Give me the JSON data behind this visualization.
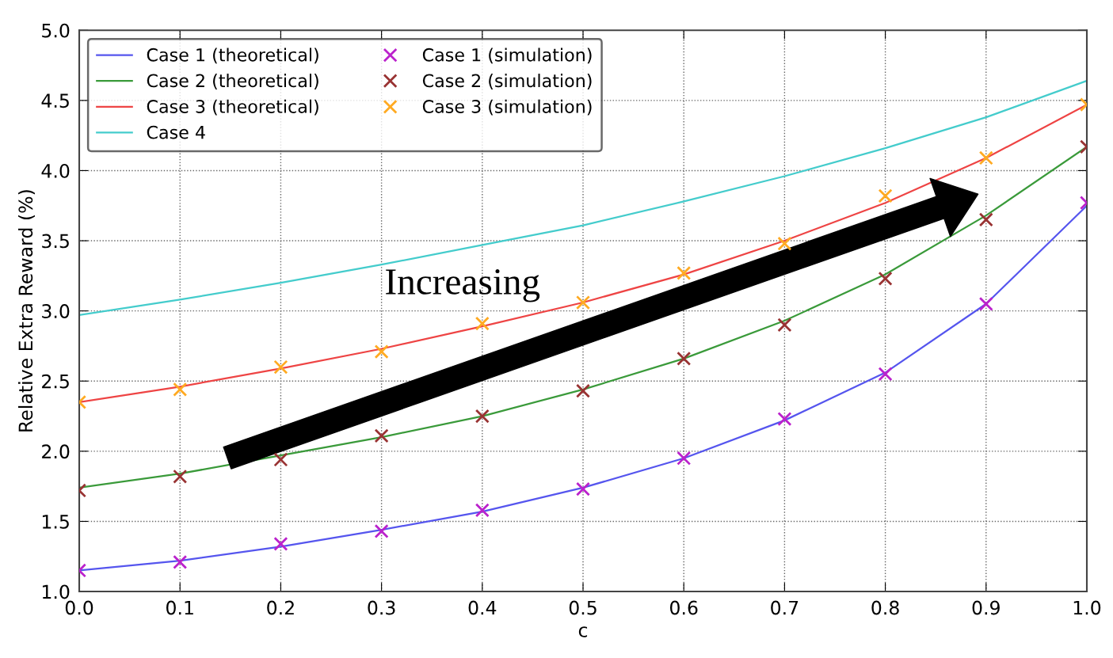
{
  "chart_data": {
    "type": "line",
    "xlabel": "c",
    "ylabel": "Relative Extra Reward (%)",
    "x": [
      0.0,
      0.1,
      0.2,
      0.3,
      0.4,
      0.5,
      0.6,
      0.7,
      0.8,
      0.9,
      1.0
    ],
    "xlim": [
      0.0,
      1.0
    ],
    "xticks": [
      {
        "value": 0.0,
        "label": "0.0"
      },
      0.1,
      0.2,
      0.3,
      0.4,
      0.5,
      0.6,
      0.7,
      0.8,
      0.9,
      {
        "value": 1.0,
        "label": "1.0"
      }
    ],
    "ylim": [
      1.0,
      5.0
    ],
    "yticks": [
      {
        "value": 1.0,
        "label": "1.0"
      },
      1.5,
      {
        "value": 2.0,
        "label": "2.0"
      },
      2.5,
      {
        "value": 3.0,
        "label": "3.0"
      },
      3.5,
      {
        "value": 4.0,
        "label": "4.0"
      },
      4.5,
      {
        "value": 5.0,
        "label": "5.0"
      }
    ],
    "grid": true,
    "legend": "top left",
    "annotations": [
      "Increasing"
    ],
    "series": [
      {
        "name": "Case 1 (theoretical)",
        "color": "#5555ee",
        "marker": "none",
        "values": [
          1.15,
          1.22,
          1.32,
          1.44,
          1.57,
          1.74,
          1.95,
          2.22,
          2.56,
          3.05,
          3.75
        ]
      },
      {
        "name": "Case 2 (theoretical)",
        "color": "#3a9a3a",
        "marker": "none",
        "values": [
          1.74,
          1.84,
          1.97,
          2.1,
          2.25,
          2.44,
          2.66,
          2.93,
          3.26,
          3.68,
          4.17
        ]
      },
      {
        "name": "Case 3 (theoretical)",
        "color": "#ee4444",
        "marker": "none",
        "values": [
          2.35,
          2.46,
          2.59,
          2.73,
          2.89,
          3.06,
          3.26,
          3.5,
          3.77,
          4.09,
          4.47
        ]
      },
      {
        "name": "Case 4",
        "color": "#44cccc",
        "marker": "none",
        "values": [
          2.97,
          3.08,
          3.2,
          3.33,
          3.47,
          3.61,
          3.78,
          3.96,
          4.16,
          4.38,
          4.64
        ]
      },
      {
        "name": "Case 1 (simulation)",
        "type": "scatter",
        "color": "#bb22cc",
        "marker": "cross",
        "values": [
          1.15,
          1.21,
          1.34,
          1.43,
          1.58,
          1.73,
          1.95,
          2.23,
          2.55,
          3.05,
          3.77
        ]
      },
      {
        "name": "Case 2 (simulation)",
        "type": "scatter",
        "color": "#993333",
        "marker": "cross",
        "values": [
          1.72,
          1.82,
          1.94,
          2.11,
          2.25,
          2.43,
          2.66,
          2.9,
          3.23,
          3.65,
          4.17
        ]
      },
      {
        "name": "Case 3 (simulation)",
        "type": "scatter",
        "color": "#ffaa22",
        "marker": "cross",
        "values": [
          2.35,
          2.44,
          2.6,
          2.71,
          2.91,
          3.06,
          3.27,
          3.48,
          3.82,
          4.09,
          4.47
        ]
      }
    ]
  }
}
